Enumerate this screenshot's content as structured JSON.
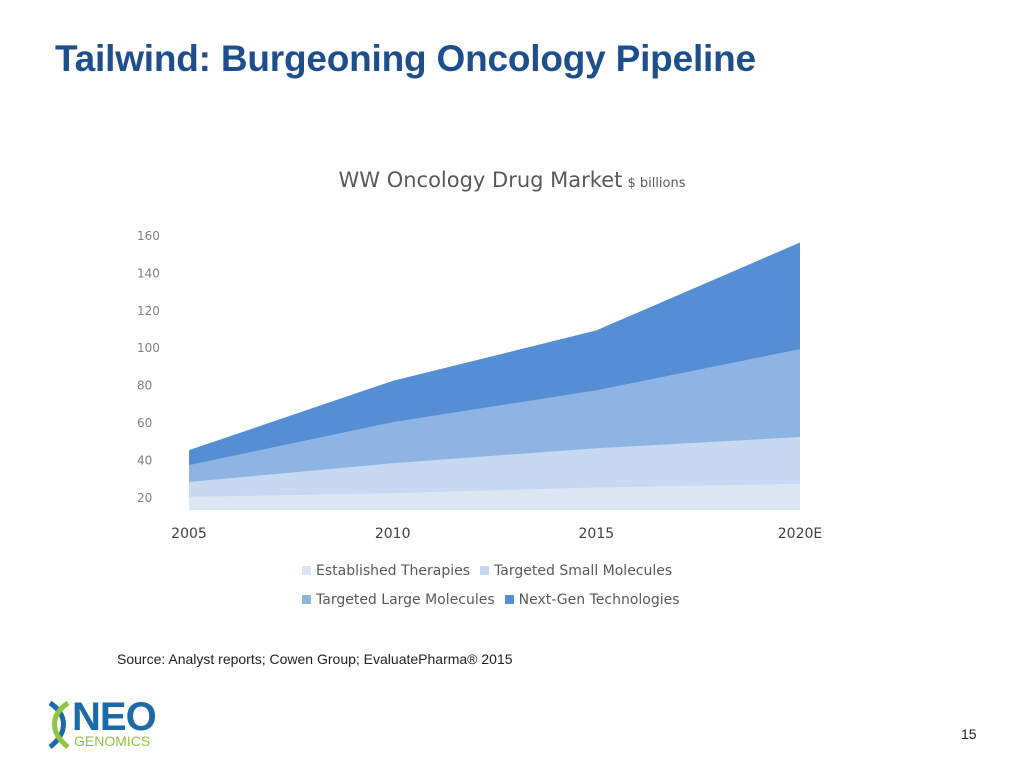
{
  "slide": {
    "title": "Tailwind: Burgeoning Oncology Pipeline",
    "source": "Source: Analyst reports; Cowen Group; EvaluatePharma® 2015",
    "page_number": "15"
  },
  "logo": {
    "text": "NEO",
    "subtext": "GENOMICS",
    "color": "#1c6aa8",
    "accent": "#8dc63f"
  },
  "chart_data": {
    "type": "area",
    "stacked": true,
    "title": "WW Oncology Drug Market",
    "title_unit": "$ billions",
    "categories": [
      "2005",
      "2010",
      "2015",
      "2020E"
    ],
    "ylim": [
      13,
      160
    ],
    "yticks": [
      20,
      40,
      60,
      80,
      100,
      120,
      140,
      160
    ],
    "grid": false,
    "legend_position": "bottom",
    "series": [
      {
        "name": "Established Therapies",
        "values": [
          20,
          22,
          25,
          27
        ],
        "color": "#dce6f2"
      },
      {
        "name": "Targeted Small Molecules",
        "values": [
          28,
          38,
          46,
          52
        ],
        "color": "#c6d9f1"
      },
      {
        "name": "Targeted Large Molecules",
        "values": [
          37,
          60,
          77,
          99
        ],
        "color": "#8eb4e3"
      },
      {
        "name": "Next-Gen Technologies",
        "values": [
          45,
          82,
          109,
          156
        ],
        "color": "#558ed5"
      }
    ]
  }
}
